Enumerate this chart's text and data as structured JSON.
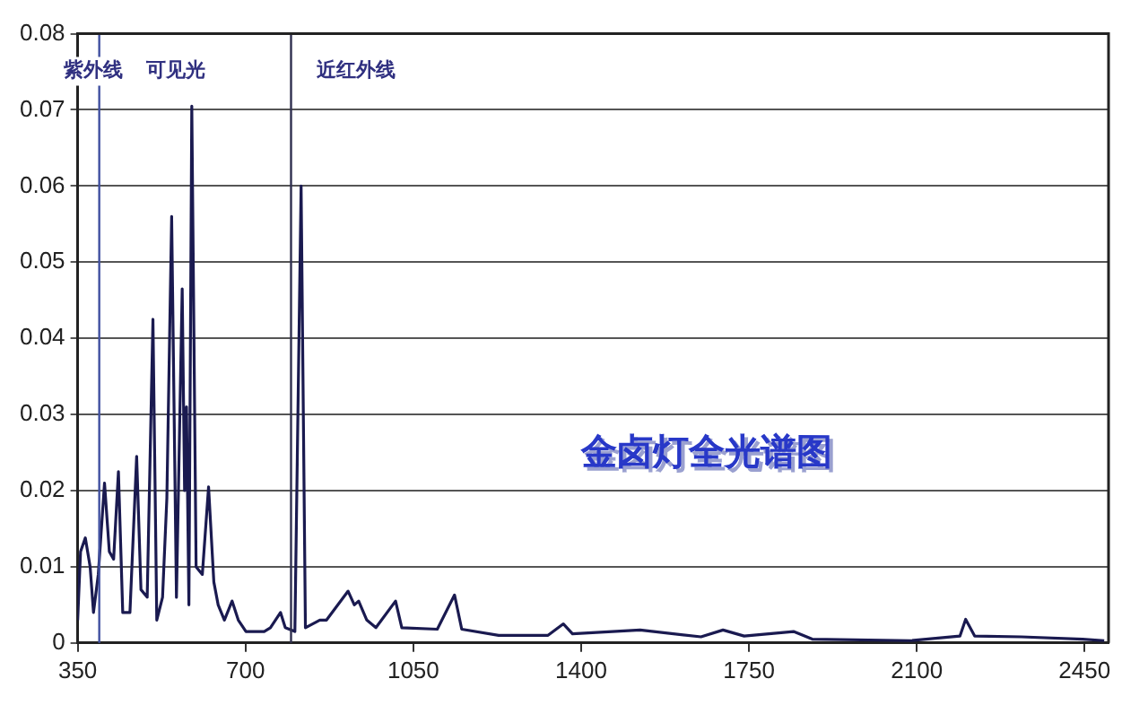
{
  "chart_data": {
    "type": "line",
    "title": "金卤灯全光谱图",
    "annotations": [
      "紫外线",
      "可见光",
      "近红外线"
    ],
    "series": [
      {
        "color": "#1a1a50",
        "x": [
          350,
          356,
          366,
          376,
          383,
          393,
          406,
          416,
          425,
          435,
          444,
          459,
          473,
          482,
          495,
          507,
          515,
          527,
          536,
          546,
          556,
          568,
          573,
          577,
          582,
          588,
          597,
          610,
          623,
          634,
          643,
          656,
          672,
          685,
          701,
          739,
          752,
          773,
          783,
          803,
          816,
          825,
          855,
          869,
          914,
          927,
          936,
          953,
          972,
          1013,
          1026,
          1100,
          1136,
          1151,
          1228,
          1331,
          1363,
          1382,
          1523,
          1650,
          1696,
          1740,
          1843,
          1882,
          2087,
          2190,
          2202,
          2221,
          2318,
          2446,
          2491
        ],
        "values": [
          0.003,
          0.012,
          0.0138,
          0.01,
          0.004,
          0.009,
          0.021,
          0.012,
          0.011,
          0.0225,
          0.004,
          0.004,
          0.0245,
          0.007,
          0.006,
          0.0425,
          0.003,
          0.006,
          0.019,
          0.056,
          0.006,
          0.0465,
          0.02,
          0.031,
          0.005,
          0.0705,
          0.01,
          0.009,
          0.0205,
          0.008,
          0.005,
          0.003,
          0.0055,
          0.003,
          0.0015,
          0.0015,
          0.002,
          0.004,
          0.002,
          0.0015,
          0.06,
          0.002,
          0.003,
          0.003,
          0.0068,
          0.005,
          0.0055,
          0.003,
          0.002,
          0.0055,
          0.002,
          0.0018,
          0.0063,
          0.0018,
          0.001,
          0.001,
          0.0025,
          0.0012,
          0.0017,
          0.0008,
          0.0017,
          0.0009,
          0.0015,
          0.0005,
          0.0003,
          0.0009,
          0.0031,
          0.0009,
          0.0008,
          0.0005,
          0.0003
        ]
      }
    ],
    "xlim": [
      350,
      2500
    ],
    "xticks": [
      350,
      700,
      1050,
      1400,
      1750,
      2100,
      2450
    ],
    "ylim": [
      0,
      0.08
    ],
    "yticks": [
      0,
      0.01,
      0.02,
      0.03,
      0.04,
      0.05,
      0.06,
      0.07,
      0.08
    ],
    "ref_lines": [
      {
        "axis": "x",
        "value": 395,
        "color": "#4050a0"
      },
      {
        "axis": "x",
        "value": 795,
        "color": "#303050"
      }
    ],
    "grid": "y",
    "legend": false,
    "marker": "none",
    "line_style": "solid"
  }
}
